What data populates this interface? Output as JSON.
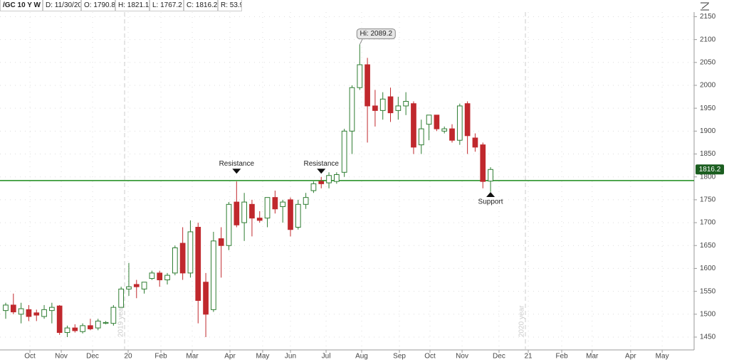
{
  "header": {
    "symbol": "/GC 10 Y W",
    "date": "D: 11/30/20",
    "open": "O: 1790.8",
    "high": "H: 1821.1",
    "low": "L: 1767.2",
    "close": "C: 1816.2",
    "range": "R: 53.9"
  },
  "chart_data": {
    "type": "candlestick",
    "x": [
      0,
      1,
      2,
      3,
      4,
      5,
      6,
      7,
      8,
      9,
      10,
      11,
      12,
      13,
      14,
      15,
      16,
      17,
      18,
      19,
      20,
      21,
      22,
      23,
      24,
      25,
      26,
      27,
      28,
      29,
      30,
      31,
      32,
      33,
      34,
      35,
      36,
      37,
      38,
      39,
      40,
      41,
      42,
      43,
      44,
      45,
      46,
      47,
      48,
      49,
      50,
      51,
      52,
      53,
      54,
      55,
      56,
      57,
      58,
      59,
      60,
      61,
      62,
      63
    ],
    "open": [
      1508,
      1520,
      1500,
      1510,
      1503,
      1495,
      1508,
      1518,
      1460,
      1470,
      1462,
      1475,
      1470,
      1480,
      1480,
      1515,
      1555,
      1565,
      1555,
      1578,
      1590,
      1575,
      1590,
      1655,
      1590,
      1690,
      1570,
      1510,
      1665,
      1650,
      1745,
      1700,
      1740,
      1710,
      1710,
      1755,
      1735,
      1750,
      1690,
      1740,
      1770,
      1790,
      1787,
      1790,
      1810,
      1900,
      1995,
      2045,
      1955,
      1945,
      1975,
      1945,
      1955,
      1960,
      1870,
      1915,
      1935,
      1900,
      1905,
      1880,
      1960,
      1885,
      1870,
      1790.8
    ],
    "high": [
      1525,
      1545,
      1525,
      1520,
      1510,
      1520,
      1525,
      1520,
      1475,
      1478,
      1480,
      1490,
      1490,
      1485,
      1520,
      1560,
      1612,
      1575,
      1570,
      1595,
      1595,
      1590,
      1650,
      1690,
      1705,
      1700,
      1590,
      1680,
      1690,
      1745,
      1790,
      1765,
      1750,
      1725,
      1755,
      1770,
      1750,
      1755,
      1750,
      1765,
      1790,
      1800,
      1810,
      1810,
      1905,
      2000,
      2089.2,
      2060,
      1990,
      1985,
      1995,
      1975,
      1985,
      1965,
      1925,
      1935,
      1935,
      1910,
      1915,
      1960,
      1965,
      1895,
      1875,
      1821.1
    ],
    "low": [
      1490,
      1500,
      1480,
      1485,
      1485,
      1490,
      1480,
      1455,
      1450,
      1460,
      1458,
      1465,
      1465,
      1478,
      1475,
      1515,
      1540,
      1535,
      1545,
      1575,
      1560,
      1565,
      1585,
      1575,
      1580,
      1480,
      1450,
      1505,
      1580,
      1640,
      1690,
      1660,
      1670,
      1700,
      1690,
      1720,
      1700,
      1670,
      1685,
      1730,
      1765,
      1775,
      1775,
      1785,
      1800,
      1850,
      1990,
      1875,
      1910,
      1925,
      1920,
      1925,
      1935,
      1850,
      1850,
      1880,
      1900,
      1895,
      1875,
      1870,
      1850,
      1855,
      1775,
      1767.2
    ],
    "close": [
      1520,
      1505,
      1512,
      1495,
      1498,
      1510,
      1515,
      1460,
      1470,
      1464,
      1475,
      1468,
      1485,
      1482,
      1515,
      1555,
      1560,
      1560,
      1570,
      1590,
      1575,
      1585,
      1645,
      1590,
      1680,
      1530,
      1500,
      1660,
      1650,
      1740,
      1695,
      1745,
      1710,
      1705,
      1755,
      1730,
      1745,
      1685,
      1740,
      1755,
      1785,
      1785,
      1803,
      1805,
      1900,
      1995,
      2045,
      1955,
      1945,
      1970,
      1940,
      1955,
      1965,
      1865,
      1905,
      1935,
      1905,
      1905,
      1880,
      1955,
      1890,
      1865,
      1790,
      1816.2
    ],
    "up_color": "#2e7d32",
    "down_color": "#c0282d",
    "xlim": [
      -0.74,
      89.45
    ],
    "ylim": [
      1422,
      2160
    ],
    "xticks": [
      {
        "value": 3.15,
        "label": "Oct"
      },
      {
        "value": 7.22,
        "label": "Nov"
      },
      {
        "value": 11.29,
        "label": "Dec"
      },
      {
        "value": 15.91,
        "label": "20"
      },
      {
        "value": 20.17,
        "label": "Feb"
      },
      {
        "value": 24.24,
        "label": "Mar"
      },
      {
        "value": 29.14,
        "label": "Apr"
      },
      {
        "value": 33.39,
        "label": "May"
      },
      {
        "value": 37.0,
        "label": "Jun"
      },
      {
        "value": 41.63,
        "label": "Jul"
      },
      {
        "value": 46.25,
        "label": "Aug"
      },
      {
        "value": 51.16,
        "label": "Sep"
      },
      {
        "value": 55.13,
        "label": "Oct"
      },
      {
        "value": 59.3,
        "label": "Nov"
      },
      {
        "value": 64.1,
        "label": "Dec"
      },
      {
        "value": 67.9,
        "label": "21"
      },
      {
        "value": 72.25,
        "label": "Feb"
      },
      {
        "value": 76.2,
        "label": "Mar"
      },
      {
        "value": 81.2,
        "label": "Apr"
      },
      {
        "value": 85.3,
        "label": "May"
      }
    ],
    "yticks": [
      1450,
      1500,
      1550,
      1600,
      1650,
      1700,
      1750,
      1800,
      1850,
      1900,
      1950,
      2000,
      2050,
      2100,
      2150
    ],
    "grid": true,
    "hlines": [
      {
        "value": 1792,
        "color": "#1a8a1a"
      }
    ],
    "separators": [
      {
        "x": 15.45,
        "label": "2019 year"
      },
      {
        "x": 67.53,
        "label": "2020 year"
      }
    ],
    "annotations": [
      {
        "text": "Resistance",
        "x": 30,
        "y": 1807,
        "direction": "down"
      },
      {
        "text": "Resistance",
        "x": 41,
        "y": 1807,
        "direction": "down"
      },
      {
        "text": "Support",
        "x": 63,
        "y": 1767,
        "direction": "up"
      }
    ],
    "callout": {
      "text": "Hi: 2089.2",
      "x": 46,
      "y": 2089.2
    },
    "last_price": {
      "value": 1816.2,
      "label": "1816.2"
    }
  }
}
